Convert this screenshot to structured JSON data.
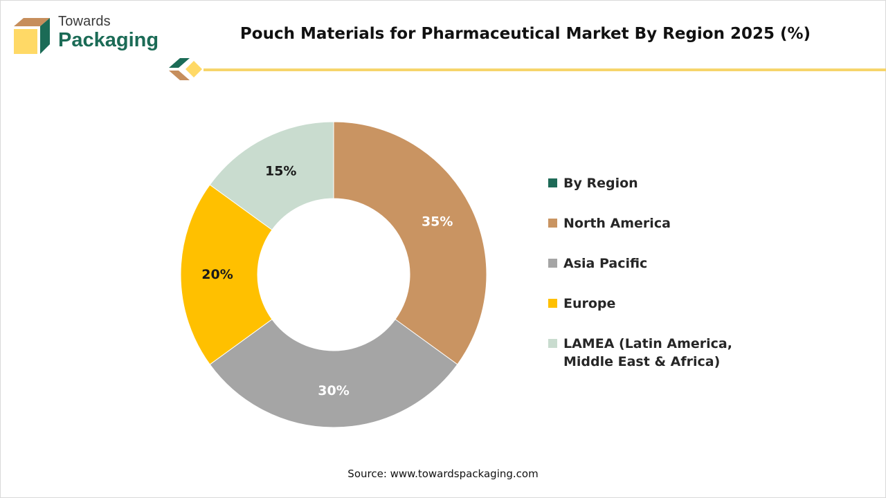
{
  "logo": {
    "line1": "Towards",
    "line2": "Packaging"
  },
  "colors": {
    "brand_green": "#1b6b56",
    "brand_tan": "#c68e5c",
    "brand_yellow": "#ffd966",
    "accent_line": "#f6d56b"
  },
  "chart_data": {
    "type": "pie",
    "title": "Pouch Materials for Pharmaceutical Market By Region 2025 (%)",
    "donut": true,
    "legend_position": "right",
    "legend": [
      {
        "label": "By Region",
        "color": "#1e6a57"
      },
      {
        "label": "North America",
        "color": "#c99462"
      },
      {
        "label": "Asia Pacific",
        "color": "#a5a5a5"
      },
      {
        "label": "Europe",
        "color": "#ffc000"
      },
      {
        "label": "LAMEA (Latin America, Middle East & Africa)",
        "color": "#c9dccf"
      }
    ],
    "slices": [
      {
        "label": "North America",
        "value": 35,
        "display": "35%",
        "color": "#c99462",
        "label_color": "#ffffff"
      },
      {
        "label": "Asia Pacific",
        "value": 30,
        "display": "30%",
        "color": "#a5a5a5",
        "label_color": "#ffffff"
      },
      {
        "label": "Europe",
        "value": 20,
        "display": "20%",
        "color": "#ffc000",
        "label_color": "#1a1a1a"
      },
      {
        "label": "LAMEA (Latin America, Middle East & Africa)",
        "value": 15,
        "display": "15%",
        "color": "#c9dccf",
        "label_color": "#1a1a1a"
      }
    ]
  },
  "source": "Source: www.towardspackaging.com"
}
